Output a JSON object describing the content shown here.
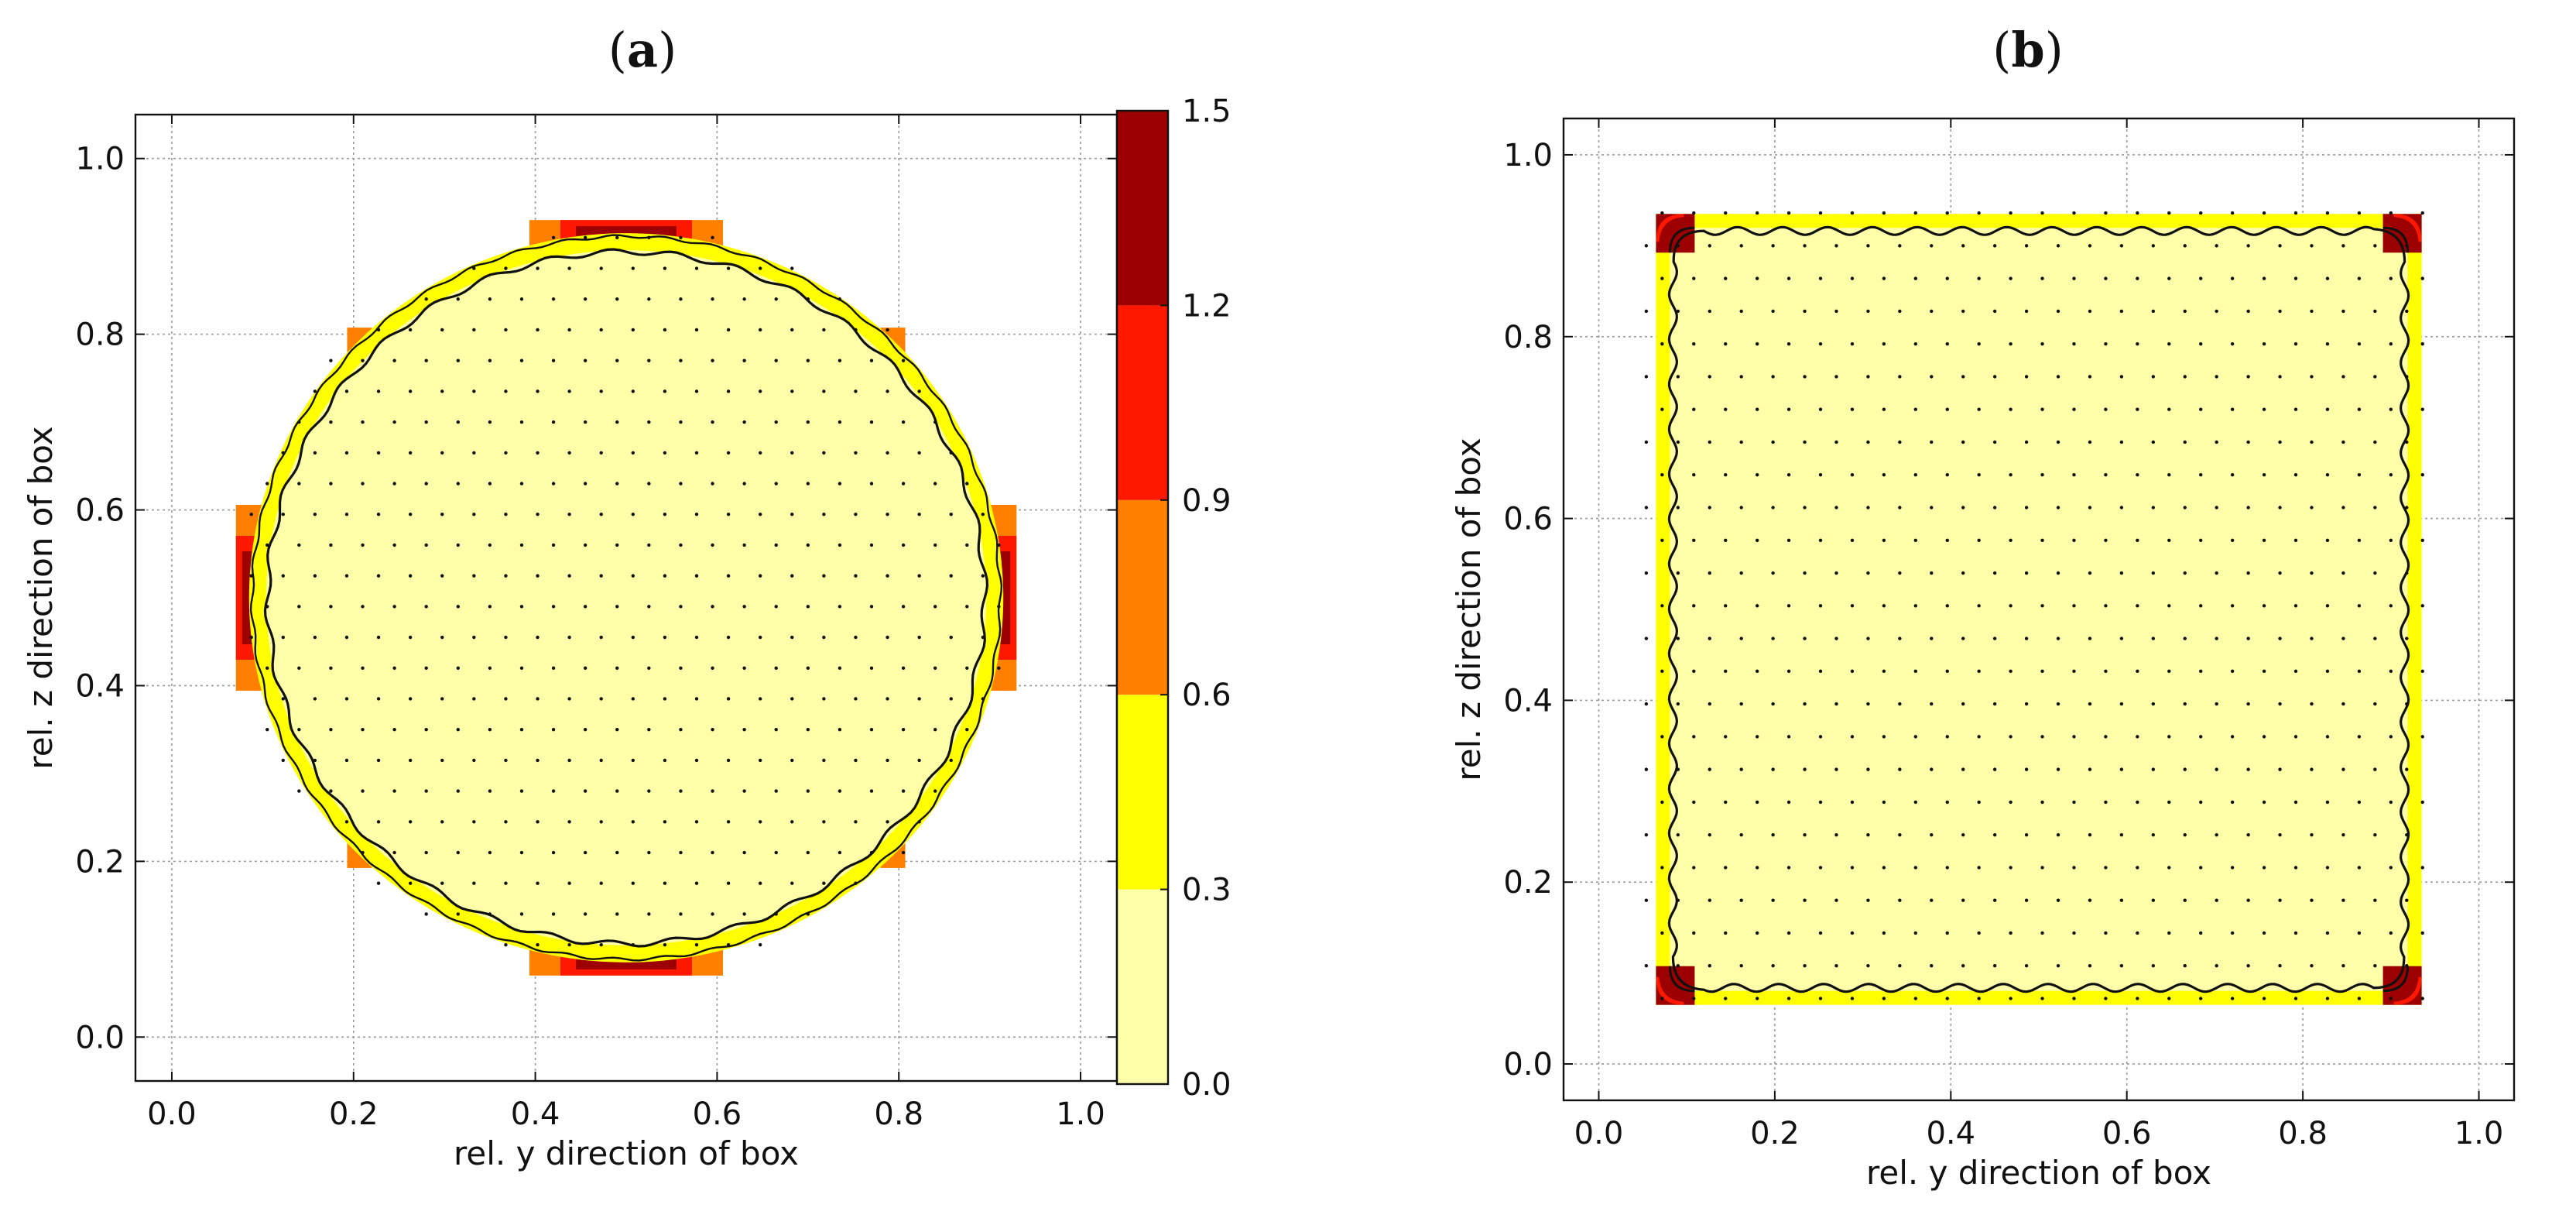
{
  "figure": {
    "panel_a_label": "a",
    "panel_b_label": "b"
  },
  "chart_data": [
    {
      "type": "heatmap",
      "panel": "a",
      "title": "(a)",
      "xlabel": "rel. y direction of box",
      "ylabel": "rel. z direction of box",
      "xlim": [
        -0.04,
        1.04
      ],
      "ylim": [
        -0.05,
        1.05
      ],
      "xticks": [
        0.0,
        0.2,
        0.4,
        0.6,
        0.8,
        1.0
      ],
      "yticks": [
        0.0,
        0.2,
        0.4,
        0.6,
        0.8,
        1.0
      ],
      "xtick_labels": [
        "0.0",
        "0.2",
        "0.4",
        "0.6",
        "0.8",
        "1.0"
      ],
      "ytick_labels": [
        "0.0",
        "0.2",
        "0.4",
        "0.6",
        "0.8",
        "1.0"
      ],
      "grid": true,
      "shape": "circle",
      "shape_center": [
        0.5,
        0.5
      ],
      "shape_radius": 0.415,
      "interior_value_range": [
        0.0,
        0.3
      ],
      "boundary_value_range": [
        0.3,
        0.6
      ],
      "hotspots": [
        {
          "location": "top",
          "value_range": [
            1.2,
            1.5
          ]
        },
        {
          "location": "bottom",
          "value_range": [
            1.2,
            1.5
          ]
        },
        {
          "location": "left",
          "value_range": [
            1.2,
            1.5
          ]
        },
        {
          "location": "right",
          "value_range": [
            1.2,
            1.5
          ]
        }
      ],
      "colorbar": {
        "levels": [
          0.0,
          0.3,
          0.6,
          0.9,
          1.2,
          1.5
        ],
        "tick_labels": [
          "0.0",
          "0.3",
          "0.6",
          "0.9",
          "1.2",
          "1.5"
        ],
        "colors": [
          "#ffffaa",
          "#ffff00",
          "#ff8000",
          "#ff1800",
          "#9c0000"
        ]
      }
    },
    {
      "type": "heatmap",
      "panel": "b",
      "title": "(b)",
      "xlabel": "rel. y direction of box",
      "ylabel": "rel. z direction of box",
      "xlim": [
        -0.04,
        1.04
      ],
      "ylim": [
        -0.04,
        1.04
      ],
      "xticks": [
        0.0,
        0.2,
        0.4,
        0.6,
        0.8,
        1.0
      ],
      "yticks": [
        0.0,
        0.2,
        0.4,
        0.6,
        0.8,
        1.0
      ],
      "xtick_labels": [
        "0.0",
        "0.2",
        "0.4",
        "0.6",
        "0.8",
        "1.0"
      ],
      "ytick_labels": [
        "0.0",
        "0.2",
        "0.4",
        "0.6",
        "0.8",
        "1.0"
      ],
      "grid": true,
      "shape": "square",
      "shape_extent": [
        0.065,
        0.935
      ],
      "interior_value_range": [
        0.0,
        0.3
      ],
      "boundary_value_range": [
        0.3,
        0.6
      ],
      "hotspots": [
        {
          "location": "corners",
          "value_range": [
            1.2,
            1.5
          ]
        }
      ]
    }
  ]
}
